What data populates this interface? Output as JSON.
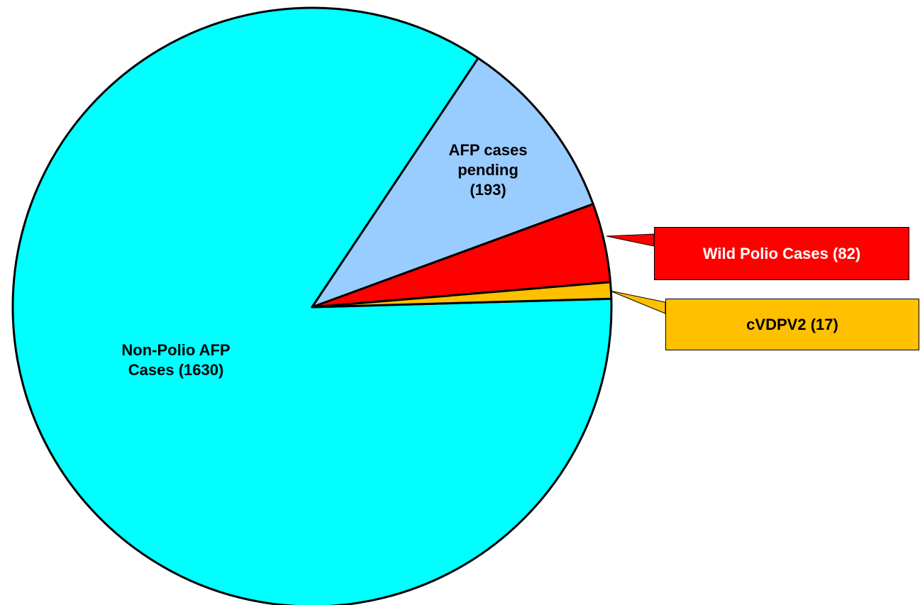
{
  "chart_data": {
    "type": "pie",
    "categories": [
      "Non-Polio AFP Cases",
      "AFP cases pending",
      "Wild Polio Cases",
      "cVDPV2"
    ],
    "values": [
      1630,
      193,
      82,
      17
    ],
    "value_labels": [
      "(1630)",
      "(193)",
      "(82)",
      "(17)"
    ],
    "colors": [
      "#00ffff",
      "#99ccff",
      "#ff0000",
      "#ffc000"
    ]
  }
}
